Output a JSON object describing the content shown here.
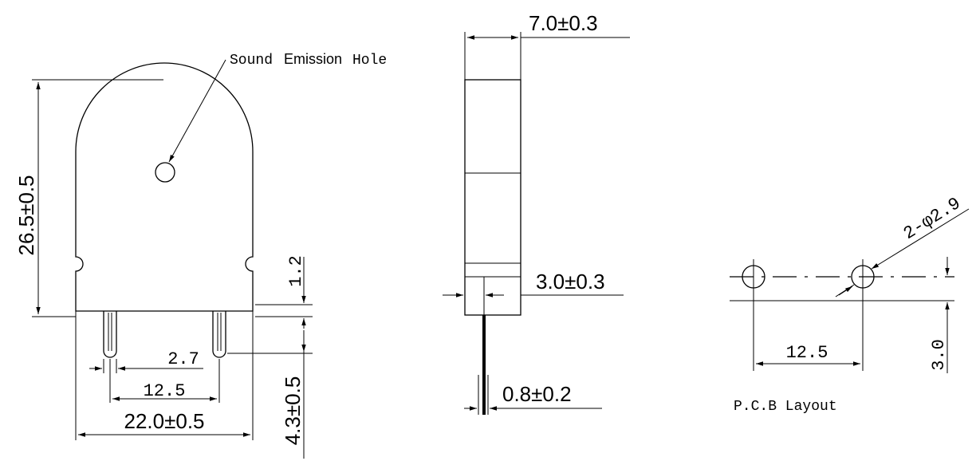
{
  "labels": {
    "sound_hole_prefix": "Sound",
    "sound_hole_middle": "Emission",
    "sound_hole_suffix": "Hole",
    "height_total": "26.5±0.5",
    "width_total": "22.0±0.5",
    "pin_pitch": "12.5",
    "pin_offset": "2.7",
    "notch_height": "1.2",
    "pin_length": "4.3±0.5",
    "thickness": "7.0±0.3",
    "pin_setback": "3.0±0.3",
    "pin_diameter": "0.8±0.2",
    "pcb_hole_diameter": "2-φ2.9",
    "pcb_pitch": "12.5",
    "pcb_offset": "3.0",
    "pcb_title": "P.C.B Layout"
  }
}
